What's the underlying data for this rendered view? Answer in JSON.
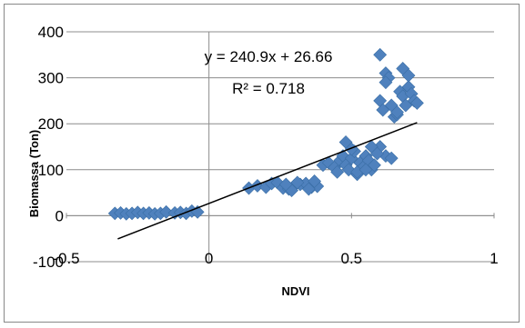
{
  "chart_data": {
    "type": "scatter",
    "xlabel": "NDVI",
    "ylabel": "Biomassa (Ton)",
    "xlim": [
      -0.5,
      1
    ],
    "ylim": [
      -100,
      400
    ],
    "x_ticks": [
      -0.5,
      0,
      0.5,
      1
    ],
    "x_tick_labels": [
      "-0.5",
      "0",
      "0.5",
      "1"
    ],
    "y_ticks": [
      -100,
      0,
      100,
      200,
      300,
      400
    ],
    "y_tick_labels": [
      "-100",
      "0",
      "100",
      "200",
      "300",
      "400"
    ],
    "grid": true,
    "legend": "none",
    "marker_color": "#4f81bd",
    "trendline_color": "#000000",
    "series": [
      {
        "x": [
          -0.33,
          -0.31,
          -0.29,
          -0.27,
          -0.25,
          -0.23,
          -0.21,
          -0.19,
          -0.17,
          -0.15,
          -0.12,
          -0.1,
          -0.08,
          -0.06,
          -0.04,
          0.14,
          0.17,
          0.2,
          0.22,
          0.24,
          0.26,
          0.28,
          0.3,
          0.32,
          0.34,
          0.36,
          0.38,
          0.29,
          0.31,
          0.35,
          0.37,
          0.27,
          0.4,
          0.42,
          0.44,
          0.45,
          0.46,
          0.47,
          0.48,
          0.49,
          0.5,
          0.51,
          0.52,
          0.53,
          0.54,
          0.55,
          0.56,
          0.57,
          0.58,
          0.6,
          0.62,
          0.64,
          0.48,
          0.5,
          0.52,
          0.55,
          0.57,
          0.59,
          0.6,
          0.61,
          0.62,
          0.63,
          0.64,
          0.65,
          0.66,
          0.67,
          0.68,
          0.69,
          0.7,
          0.71,
          0.72,
          0.73,
          0.6,
          0.62,
          0.66,
          0.68,
          0.7
        ],
        "y": [
          5,
          6,
          4,
          5,
          7,
          5,
          6,
          4,
          5,
          8,
          6,
          7,
          5,
          10,
          8,
          60,
          65,
          62,
          70,
          72,
          60,
          58,
          66,
          68,
          70,
          62,
          64,
          55,
          72,
          58,
          75,
          68,
          110,
          115,
          105,
          95,
          120,
          130,
          110,
          100,
          125,
          140,
          90,
          115,
          105,
          130,
          120,
          100,
          110,
          150,
          130,
          125,
          160,
          145,
          95,
          100,
          150,
          135,
          250,
          230,
          310,
          300,
          240,
          215,
          220,
          270,
          260,
          240,
          280,
          265,
          250,
          245,
          350,
          290,
          225,
          320,
          305
        ]
      }
    ],
    "trendline": {
      "slope": 240.9,
      "intercept": 26.66,
      "x_range": [
        -0.32,
        0.73
      ],
      "equation_label": "y = 240.9x + 26.66",
      "r2_label": "R² = 0.718"
    }
  }
}
